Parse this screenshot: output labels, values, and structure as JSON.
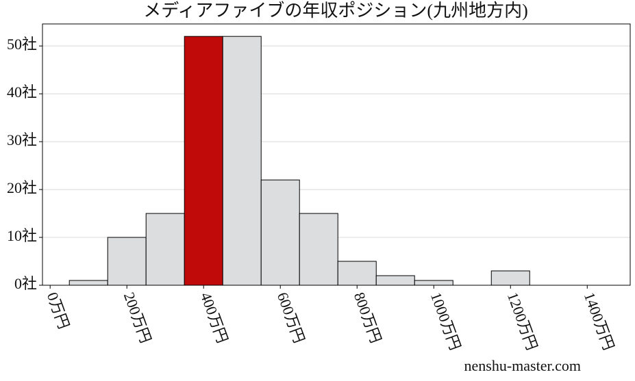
{
  "chart_data": {
    "type": "histogram",
    "title": "メディアファイブの年収ポジション(九州地方内)",
    "bins": [
      50,
      150,
      250,
      350,
      450,
      550,
      650,
      750,
      850,
      950,
      1050,
      1150,
      1250
    ],
    "values": [
      1,
      10,
      15,
      52,
      52,
      22,
      15,
      5,
      2,
      1,
      0,
      3
    ],
    "colors": [
      "#dcdddf",
      "#dcdddf",
      "#dcdddf",
      "#c00a0a",
      "#dcdddf",
      "#dcdddf",
      "#dcdddf",
      "#dcdddf",
      "#dcdddf",
      "#dcdddf",
      "#dcdddf",
      "#dcdddf"
    ],
    "xlim": [
      -20,
      1512
    ],
    "ylim": [
      0,
      54.6
    ],
    "xticks": [
      {
        "value": 0,
        "label": "0万円"
      },
      {
        "value": 200,
        "label": "200万円"
      },
      {
        "value": 400,
        "label": "400万円"
      },
      {
        "value": 600,
        "label": "600万円"
      },
      {
        "value": 800,
        "label": "800万円"
      },
      {
        "value": 1000,
        "label": "1000万円"
      },
      {
        "value": 1200,
        "label": "1200万円"
      },
      {
        "value": 1400,
        "label": "1400万円"
      }
    ],
    "yticks": [
      {
        "value": 0,
        "label": "0社"
      },
      {
        "value": 10,
        "label": "10社"
      },
      {
        "value": 20,
        "label": "20社"
      },
      {
        "value": 30,
        "label": "30社"
      },
      {
        "value": 40,
        "label": "40社"
      },
      {
        "value": 50,
        "label": "50社"
      }
    ],
    "grid": true,
    "watermark": "nenshu-master.com"
  }
}
